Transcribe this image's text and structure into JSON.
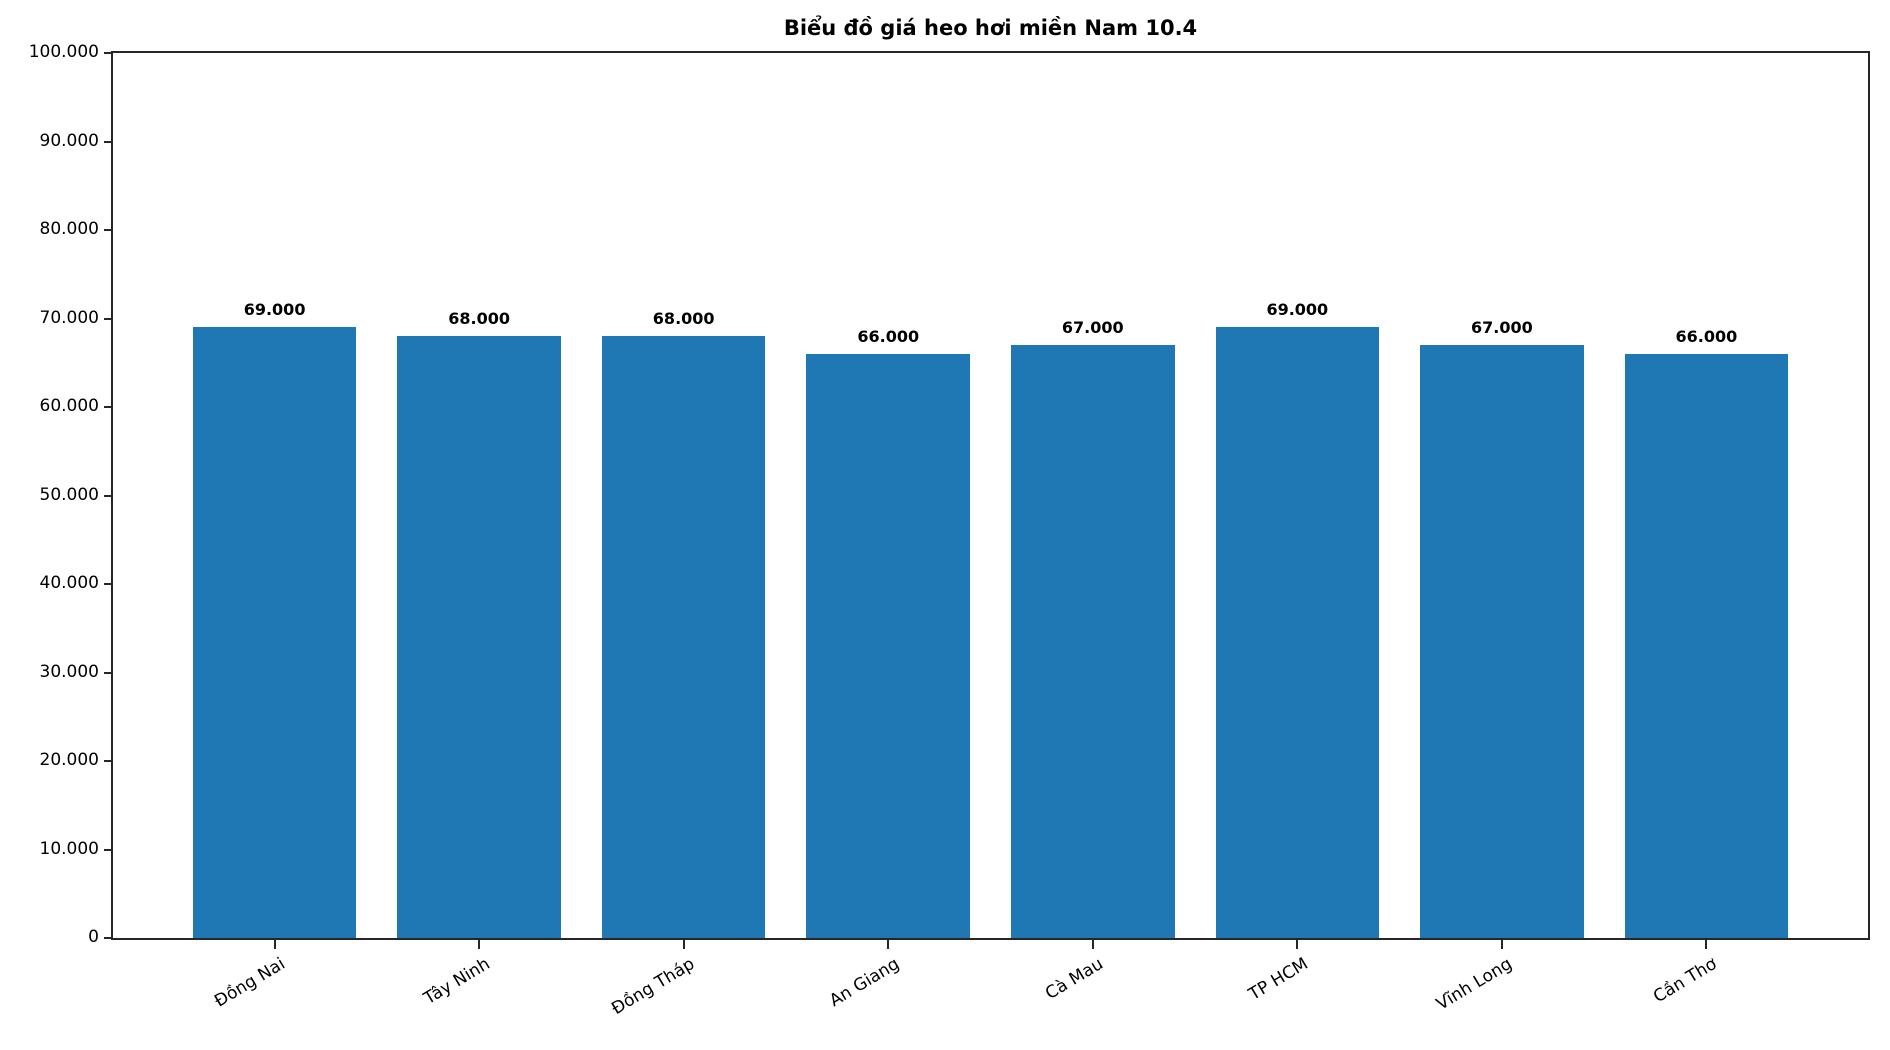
{
  "chart_data": {
    "type": "bar",
    "title": "Biểu đồ giá heo hơi miền Nam 10.4",
    "categories": [
      "Đồng Nai",
      "Tây Ninh",
      "Đồng Tháp",
      "An Giang",
      "Cà Mau",
      "TP HCM",
      "Vĩnh Long",
      "Cần Thơ"
    ],
    "values": [
      69000,
      68000,
      68000,
      66000,
      67000,
      69000,
      67000,
      66000
    ],
    "bar_labels": [
      "69.000",
      "68.000",
      "68.000",
      "66.000",
      "67.000",
      "69.000",
      "67.000",
      "66.000"
    ],
    "xlabel": "",
    "ylabel": "",
    "ylim": [
      0,
      100000
    ],
    "ytick_step": 10000,
    "ytick_labels": [
      "0",
      "10.000",
      "20.000",
      "30.000",
      "40.000",
      "50.000",
      "60.000",
      "70.000",
      "80.000",
      "90.000",
      "100.000"
    ],
    "bar_color": "#1f77b4",
    "grid": false,
    "legend": null
  }
}
